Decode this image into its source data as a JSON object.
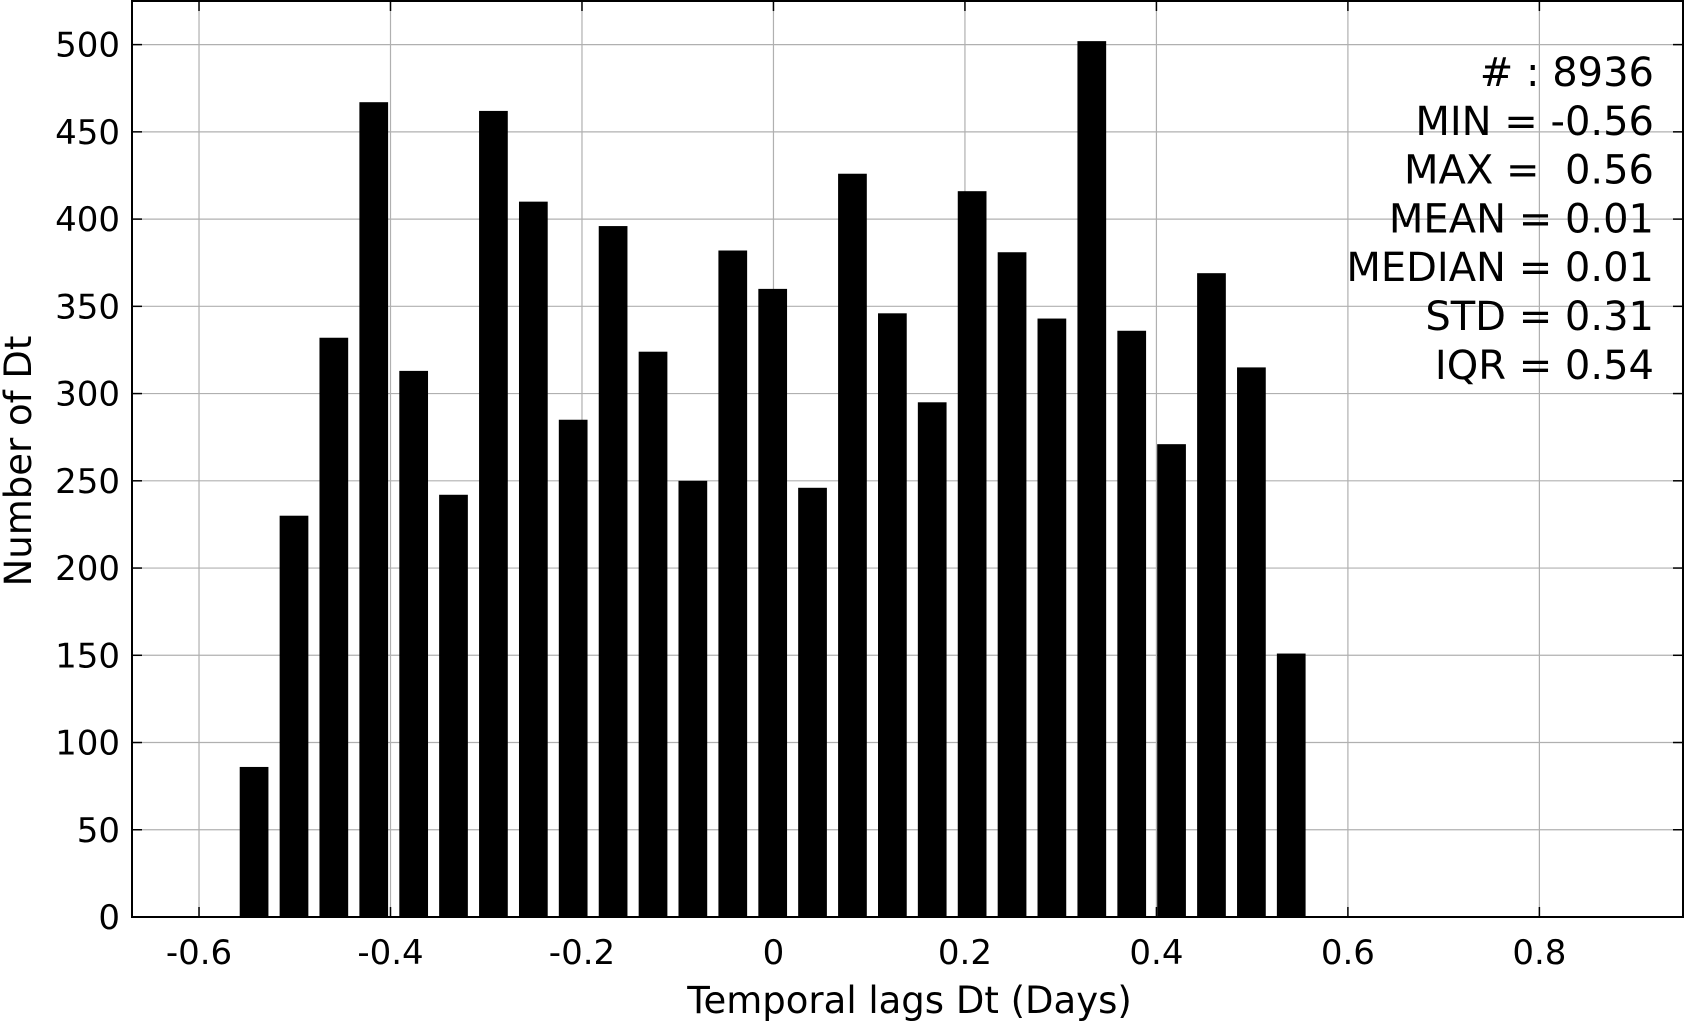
{
  "chart_data": {
    "type": "bar",
    "title": "",
    "xlabel": "Temporal lags Dt (Days)",
    "ylabel": "Number of Dt",
    "xlim": [
      -0.67,
      0.95
    ],
    "ylim": [
      0,
      525
    ],
    "grid": true,
    "bar_color": "#000000",
    "bar_width": 0.03,
    "x_ticks": [
      -0.6,
      -0.4,
      -0.2,
      0,
      0.2,
      0.4,
      0.6,
      0.8
    ],
    "x_tick_labels": [
      "-0.6",
      "-0.4",
      "-0.2",
      "0",
      "0.2",
      "0.4",
      "0.6",
      "0.8"
    ],
    "y_ticks": [
      0,
      50,
      100,
      150,
      200,
      250,
      300,
      350,
      400,
      450,
      500
    ],
    "y_tick_labels": [
      "0",
      "50",
      "100",
      "150",
      "200",
      "250",
      "300",
      "350",
      "400",
      "450",
      "500"
    ],
    "bars": [
      {
        "x": -0.5425,
        "value": 86
      },
      {
        "x": -0.5008,
        "value": 230
      },
      {
        "x": -0.4592,
        "value": 332
      },
      {
        "x": -0.4175,
        "value": 467
      },
      {
        "x": -0.3758,
        "value": 313
      },
      {
        "x": -0.3342,
        "value": 242
      },
      {
        "x": -0.2925,
        "value": 462
      },
      {
        "x": -0.2508,
        "value": 410
      },
      {
        "x": -0.2092,
        "value": 285
      },
      {
        "x": -0.1675,
        "value": 396
      },
      {
        "x": -0.1258,
        "value": 324
      },
      {
        "x": -0.0842,
        "value": 250
      },
      {
        "x": -0.0425,
        "value": 382
      },
      {
        "x": -0.0008,
        "value": 360
      },
      {
        "x": 0.0408,
        "value": 246
      },
      {
        "x": 0.0825,
        "value": 426
      },
      {
        "x": 0.1242,
        "value": 346
      },
      {
        "x": 0.1658,
        "value": 295
      },
      {
        "x": 0.2075,
        "value": 416
      },
      {
        "x": 0.2492,
        "value": 381
      },
      {
        "x": 0.2908,
        "value": 343
      },
      {
        "x": 0.3325,
        "value": 502
      },
      {
        "x": 0.3742,
        "value": 336
      },
      {
        "x": 0.4158,
        "value": 271
      },
      {
        "x": 0.4575,
        "value": 369
      },
      {
        "x": 0.4992,
        "value": 315
      },
      {
        "x": 0.5408,
        "value": 151
      }
    ],
    "stats_lines": [
      "# : 8936",
      "MIN = -0.56",
      "MAX =  0.56",
      "MEAN = 0.01",
      "MEDIAN = 0.01",
      "STD = 0.31",
      "IQR = 0.54"
    ]
  }
}
